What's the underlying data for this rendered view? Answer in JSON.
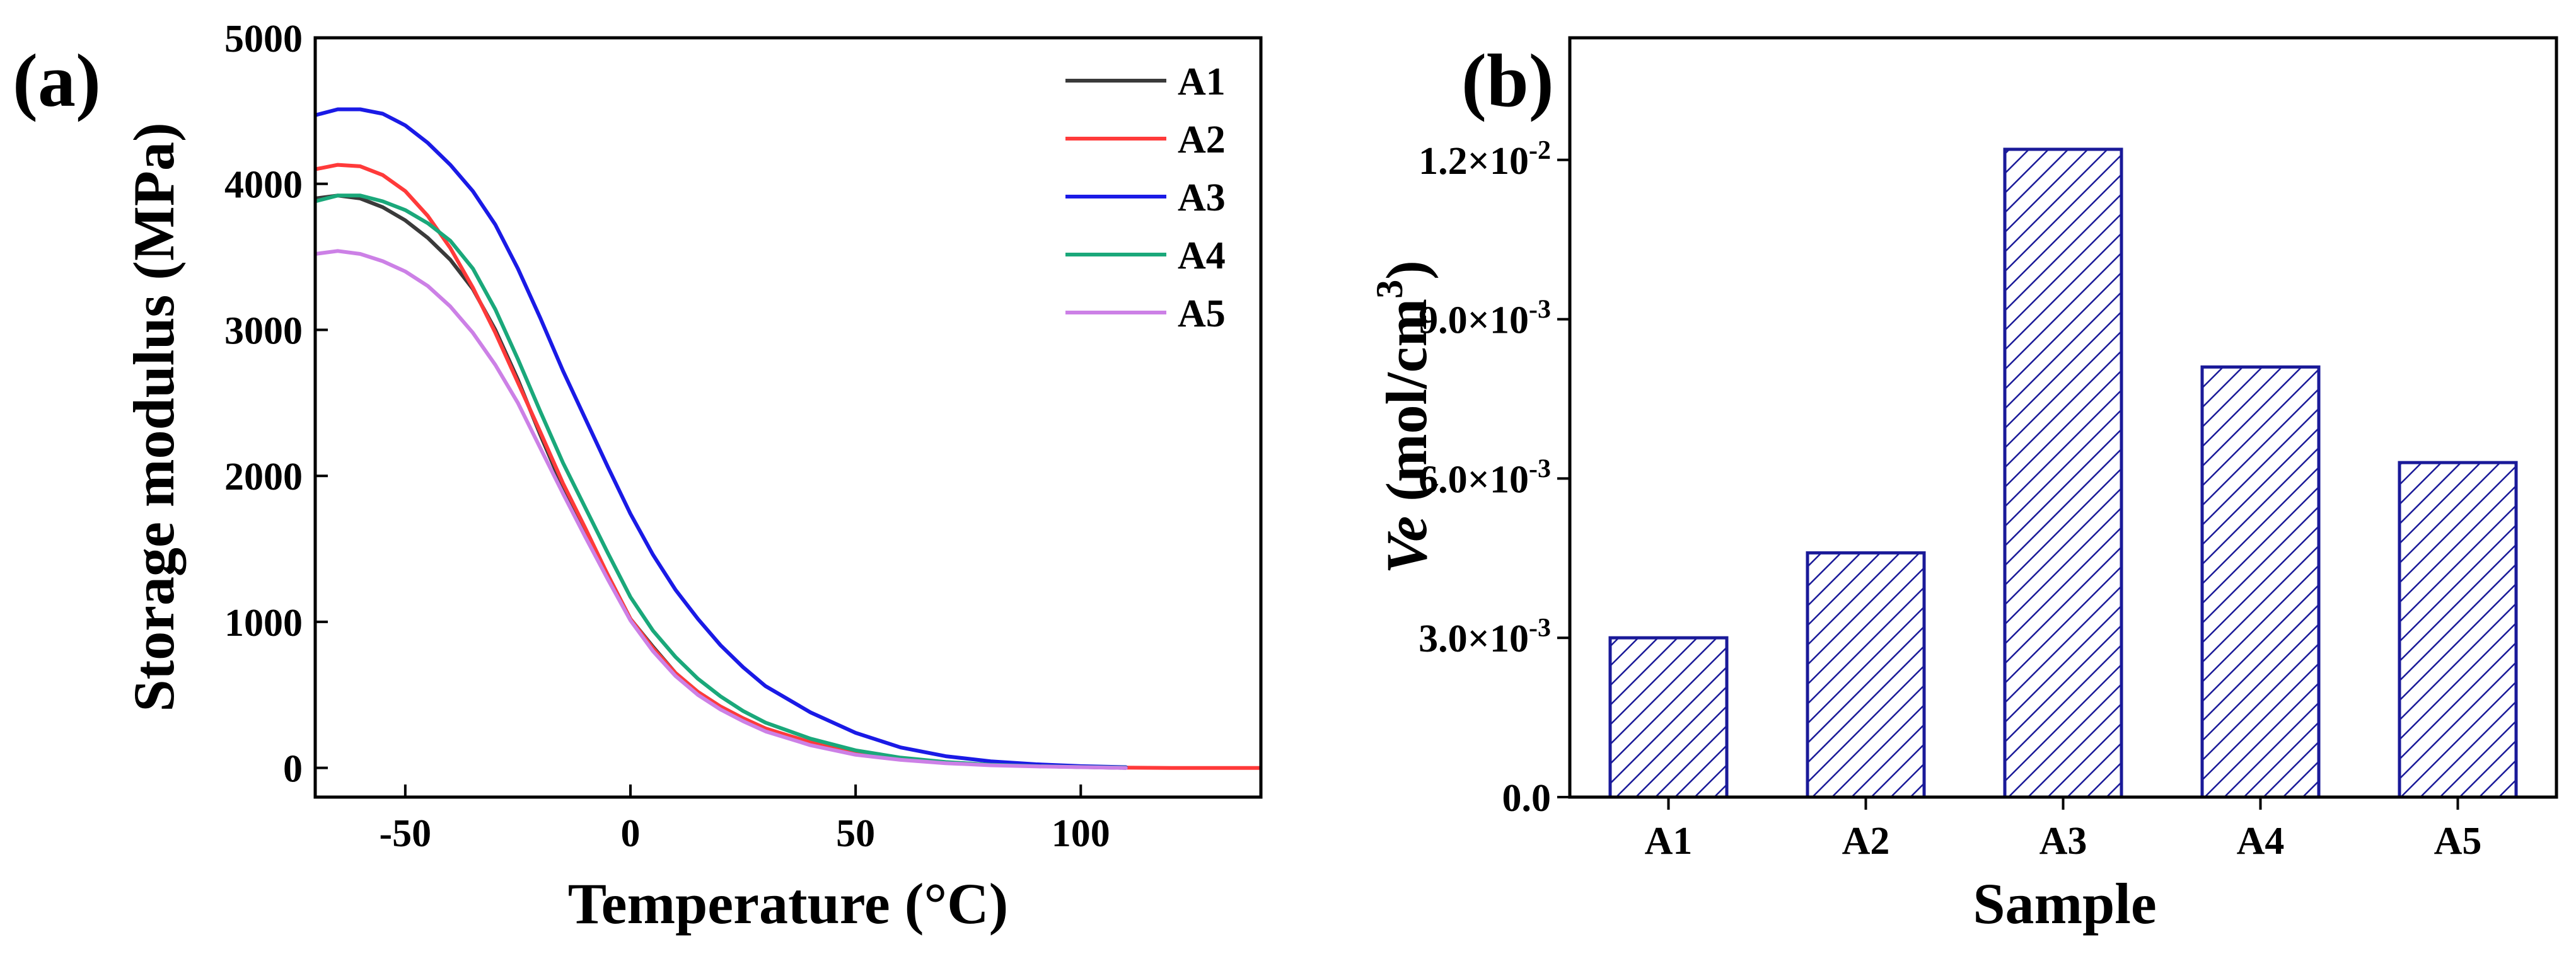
{
  "chart_data": [
    {
      "type": "line",
      "panel_label": "(a)",
      "title": "",
      "xlabel": "Temperature (°C)",
      "ylabel": "Storage modulus (MPa)",
      "xlim": [
        -70,
        140
      ],
      "ylim": [
        -200,
        5000
      ],
      "xticks": [
        -50,
        0,
        50,
        100
      ],
      "yticks": [
        0,
        1000,
        2000,
        3000,
        4000,
        5000
      ],
      "grid": false,
      "legend_position": "top-right",
      "series": [
        {
          "name": "A1",
          "color": "#3a3a3a",
          "x": [
            -70,
            -65,
            -60,
            -55,
            -50,
            -45,
            -40,
            -35,
            -30,
            -25,
            -20,
            -15,
            -10,
            -5,
            0,
            5,
            10,
            15,
            20,
            25,
            30,
            40,
            50,
            60,
            70,
            80,
            90,
            100,
            110
          ],
          "y": [
            3900,
            3920,
            3900,
            3840,
            3750,
            3630,
            3480,
            3280,
            3000,
            2660,
            2280,
            1920,
            1620,
            1320,
            1020,
            830,
            650,
            520,
            420,
            340,
            270,
            170,
            100,
            60,
            35,
            20,
            12,
            6,
            0
          ]
        },
        {
          "name": "A2",
          "color": "#ff3a3a",
          "x": [
            -70,
            -65,
            -60,
            -55,
            -50,
            -45,
            -40,
            -35,
            -30,
            -25,
            -20,
            -15,
            -10,
            -5,
            0,
            5,
            10,
            15,
            20,
            25,
            30,
            40,
            50,
            60,
            70,
            80,
            90,
            100,
            110,
            120,
            130,
            140
          ],
          "y": [
            4100,
            4130,
            4120,
            4060,
            3950,
            3780,
            3560,
            3290,
            2980,
            2640,
            2300,
            1950,
            1640,
            1320,
            1020,
            820,
            650,
            520,
            420,
            340,
            270,
            175,
            105,
            65,
            38,
            22,
            12,
            6,
            2,
            0,
            0,
            0
          ]
        },
        {
          "name": "A3",
          "color": "#1a1ae6",
          "x": [
            -70,
            -65,
            -60,
            -55,
            -50,
            -45,
            -40,
            -35,
            -30,
            -25,
            -20,
            -15,
            -10,
            -5,
            0,
            5,
            10,
            15,
            20,
            25,
            30,
            40,
            50,
            60,
            70,
            80,
            90,
            100,
            110
          ],
          "y": [
            4470,
            4510,
            4510,
            4480,
            4400,
            4280,
            4130,
            3950,
            3720,
            3420,
            3080,
            2720,
            2390,
            2060,
            1740,
            1460,
            1220,
            1020,
            840,
            690,
            560,
            380,
            240,
            140,
            80,
            45,
            25,
            12,
            5
          ]
        },
        {
          "name": "A4",
          "color": "#1aa87a",
          "x": [
            -70,
            -65,
            -60,
            -55,
            -50,
            -45,
            -40,
            -35,
            -30,
            -25,
            -20,
            -15,
            -10,
            -5,
            0,
            5,
            10,
            15,
            20,
            25,
            30,
            40,
            50,
            60,
            70,
            80,
            90,
            100,
            110
          ],
          "y": [
            3880,
            3920,
            3920,
            3880,
            3820,
            3730,
            3610,
            3420,
            3140,
            2800,
            2440,
            2090,
            1780,
            1470,
            1170,
            940,
            760,
            610,
            490,
            390,
            310,
            200,
            120,
            70,
            40,
            22,
            12,
            6,
            2
          ]
        },
        {
          "name": "A5",
          "color": "#cc80e6",
          "x": [
            -70,
            -65,
            -60,
            -55,
            -50,
            -45,
            -40,
            -35,
            -30,
            -25,
            -20,
            -15,
            -10,
            -5,
            0,
            5,
            10,
            15,
            20,
            25,
            30,
            40,
            50,
            60,
            70,
            80,
            90,
            100,
            110
          ],
          "y": [
            3520,
            3540,
            3520,
            3470,
            3400,
            3300,
            3160,
            2980,
            2760,
            2500,
            2190,
            1880,
            1580,
            1290,
            1010,
            800,
            630,
            500,
            400,
            320,
            250,
            155,
            90,
            55,
            32,
            18,
            10,
            5,
            0
          ]
        }
      ]
    },
    {
      "type": "bar",
      "panel_label": "(b)",
      "title": "",
      "xlabel": "Sample",
      "ylabel_prefix": "Ve",
      "ylabel_unit": " (mol/cm",
      "ylabel_sup": "3",
      "ylabel_close": ")",
      "categories": [
        "A1",
        "A2",
        "A3",
        "A4",
        "A5"
      ],
      "values": [
        0.003,
        0.0046,
        0.0122,
        0.0081,
        0.0063
      ],
      "ylim": [
        0,
        0.0143
      ],
      "yticks": [
        0,
        0.003,
        0.006,
        0.009,
        0.012
      ],
      "ytick_labels": [
        {
          "text": "0.0",
          "mant": "",
          "exp": ""
        },
        {
          "text": "",
          "mant": "3.0×10",
          "exp": "-3"
        },
        {
          "text": "",
          "mant": "6.0×10",
          "exp": "-3"
        },
        {
          "text": "",
          "mant": "9.0×10",
          "exp": "-3"
        },
        {
          "text": "",
          "mant": "1.2×10",
          "exp": "-2"
        }
      ],
      "bar_color": "#1a1a99",
      "bar_fill": "white",
      "bar_pattern": "diagonal-hatch",
      "grid": false
    }
  ]
}
